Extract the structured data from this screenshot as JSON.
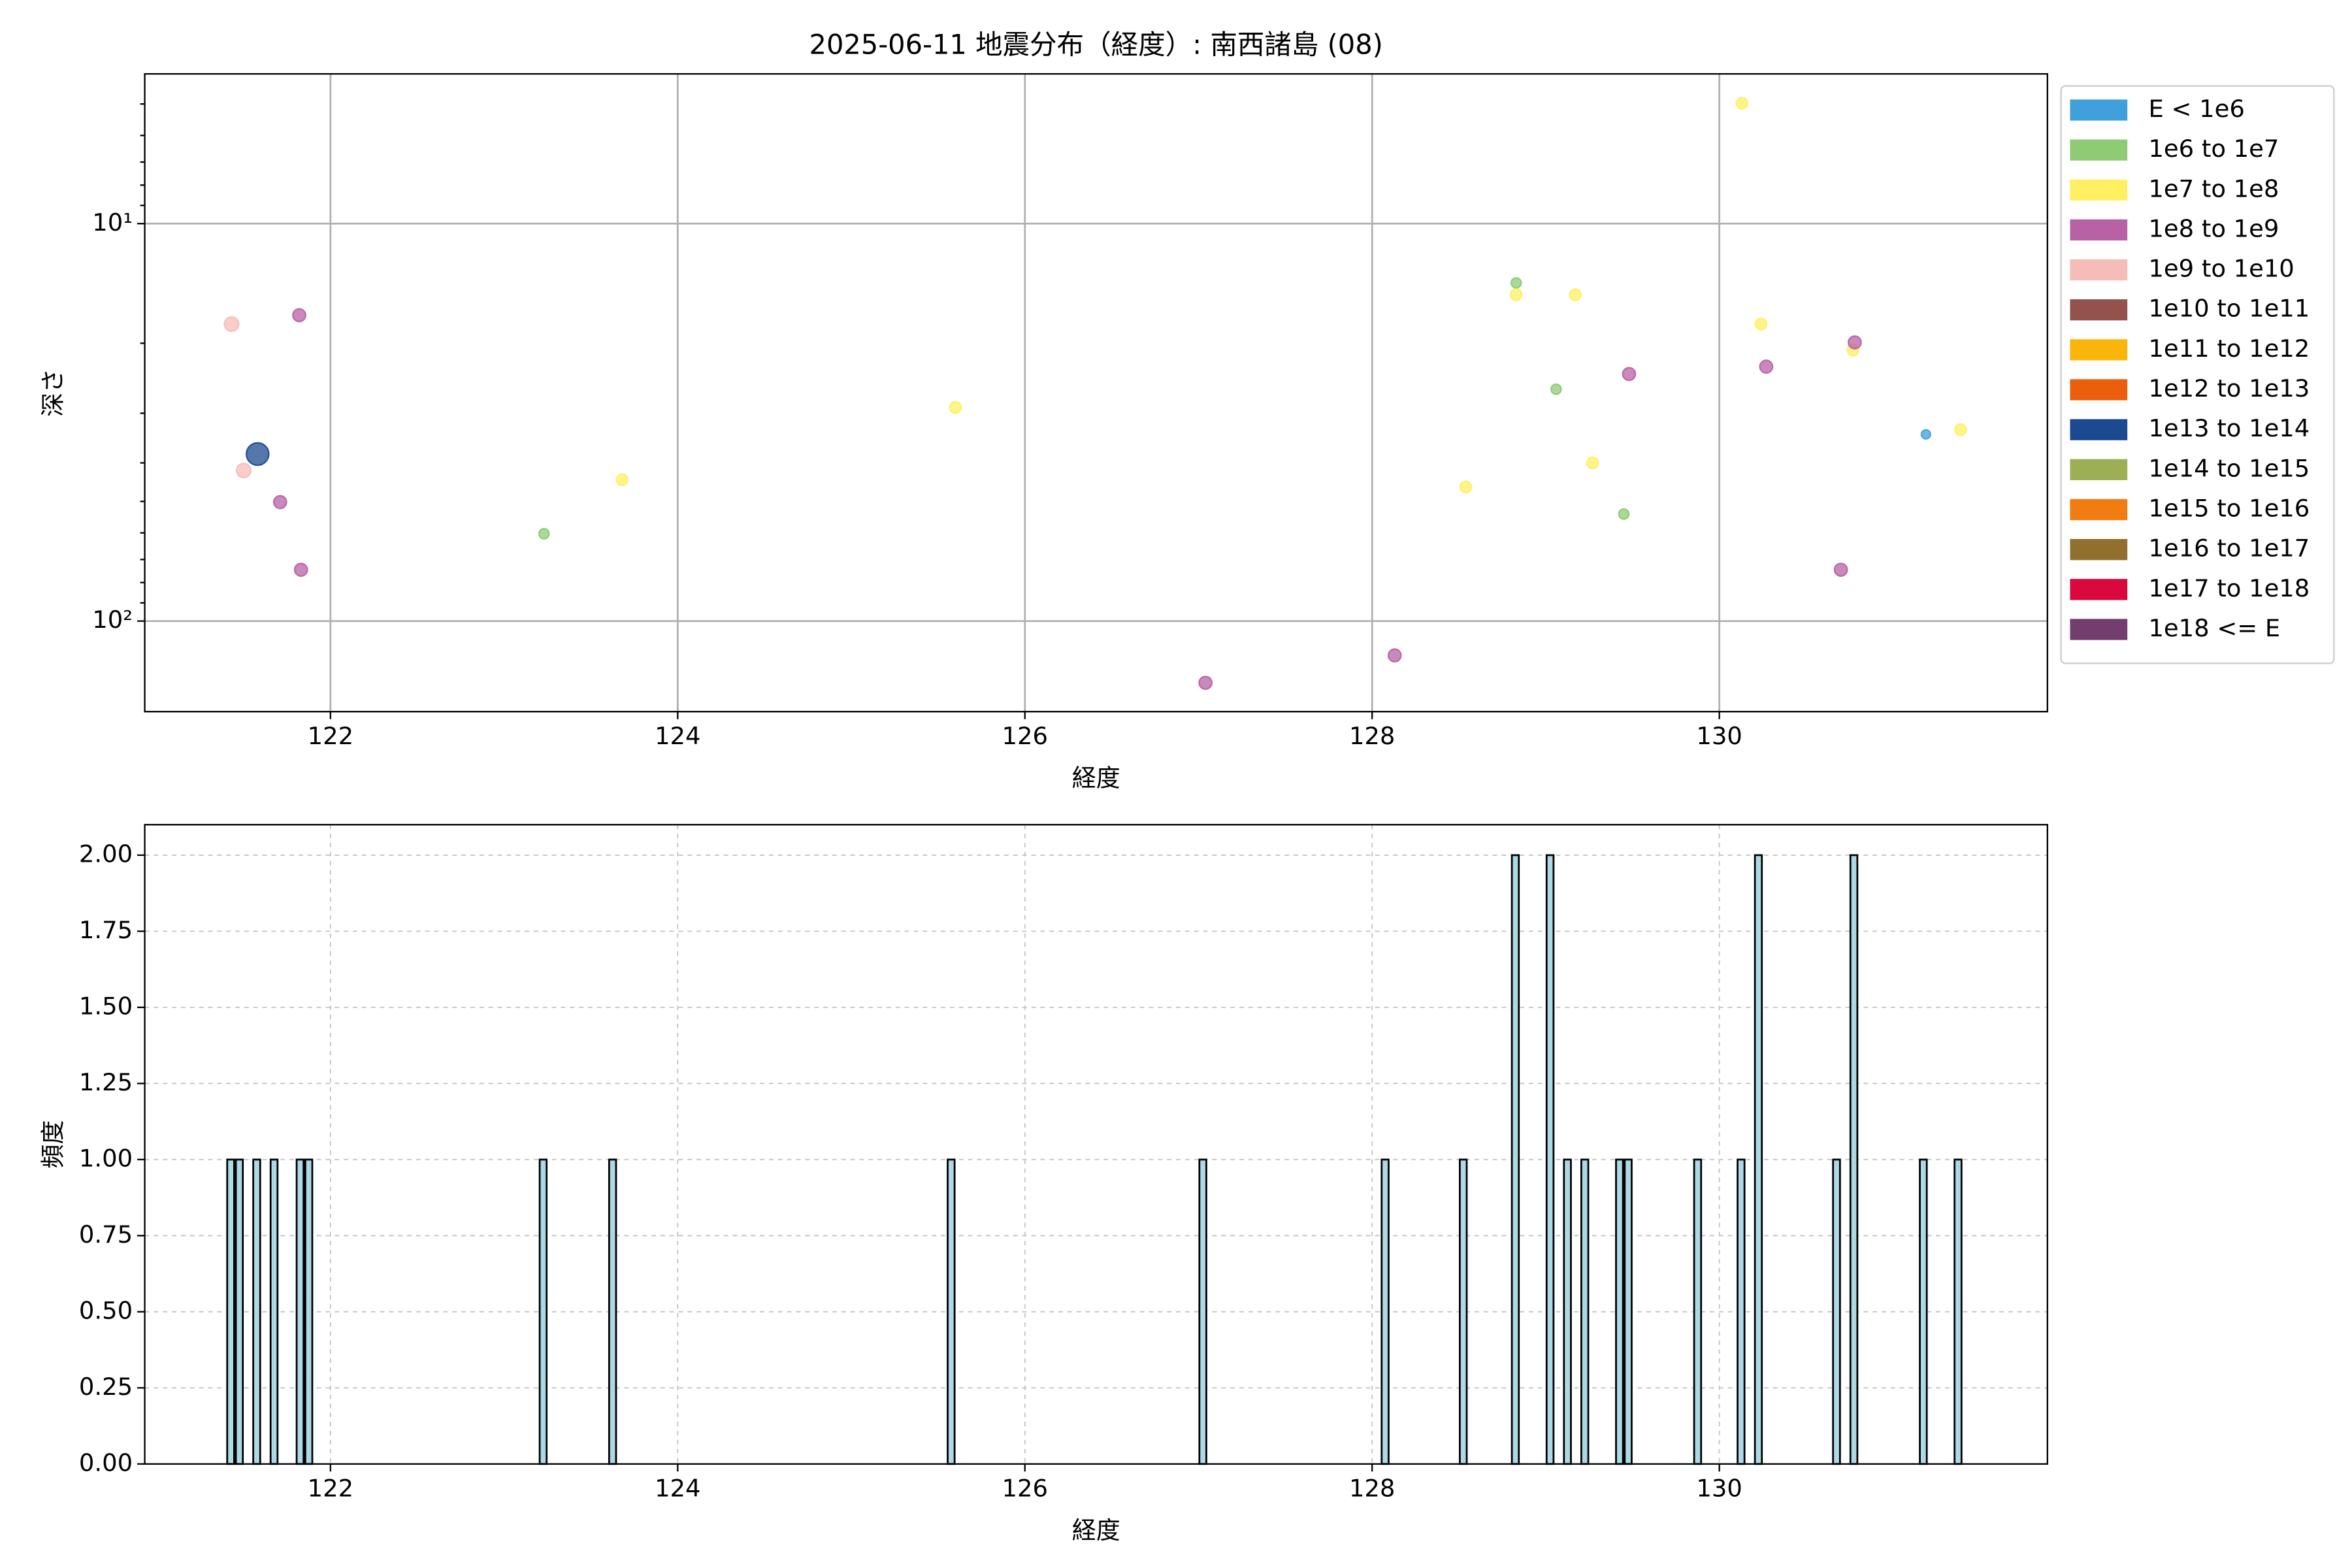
{
  "chart_data": [
    {
      "type": "scatter",
      "title": "2025-06-11 地震分布（経度）: 南西諸島 (08)",
      "x_label": "経度",
      "y_label": "深さ",
      "xlim": [
        120.93,
        131.89
      ],
      "xticks": [
        122,
        124,
        126,
        128,
        130
      ],
      "ylim": [
        4.2,
        169
      ],
      "y_log": true,
      "y_inverted": true,
      "yticks": [
        {
          "value": 10,
          "label": "10¹"
        },
        {
          "value": 100,
          "label": "10²"
        }
      ],
      "yminorticks": [
        5,
        6,
        7,
        8,
        9,
        20,
        30,
        40,
        50,
        60,
        70,
        80,
        90
      ],
      "grid": true,
      "grid_style": "solid",
      "legend": "outside-right",
      "series": [
        {
          "name": "E < 1e6",
          "color": "#3fa0dc",
          "x": [
            131.19
          ],
          "values": [
            33.9
          ]
        },
        {
          "name": "1e6 to 1e7",
          "color": "#8fcb75",
          "x": [
            123.23,
            128.83,
            129.06,
            129.45
          ],
          "values": [
            60.3,
            14.1,
            26.1,
            53.8
          ]
        },
        {
          "name": "1e7 to 1e8",
          "color": "#fff062",
          "x": [
            123.68,
            125.6,
            128.54,
            128.83,
            129.17,
            129.27,
            130.13,
            130.24,
            130.77,
            131.39
          ],
          "values": [
            44.1,
            29.0,
            46.0,
            15.1,
            15.1,
            40.0,
            4.98,
            17.9,
            20.8,
            33.0
          ]
        },
        {
          "name": "1e8 to 1e9",
          "color": "#b862a5",
          "x": [
            121.82,
            121.71,
            121.83,
            127.04,
            128.13,
            129.48,
            130.27,
            130.78,
            130.7
          ],
          "values": [
            17.0,
            50.2,
            74.3,
            143,
            122,
            23.9,
            22.9,
            19.9,
            74.3
          ]
        },
        {
          "name": "1e9 to 1e10",
          "color": "#f6bcb8",
          "x": [
            121.43,
            121.5
          ],
          "values": [
            17.9,
            41.8
          ]
        },
        {
          "name": "1e10 to 1e11",
          "color": "#93524b",
          "x": [],
          "values": []
        },
        {
          "name": "1e11 to 1e12",
          "color": "#f9b50a",
          "x": [],
          "values": []
        },
        {
          "name": "1e12 to 1e13",
          "color": "#ea5e0c",
          "x": [],
          "values": []
        },
        {
          "name": "1e13 to 1e14",
          "color": "#1c4a90",
          "x": [
            121.58
          ],
          "values": [
            38.0
          ]
        },
        {
          "name": "1e14 to 1e15",
          "color": "#9caf55",
          "x": [],
          "values": []
        },
        {
          "name": "1e15 to 1e16",
          "color": "#f07c12",
          "x": [],
          "values": []
        },
        {
          "name": "1e16 to 1e17",
          "color": "#916f2d",
          "x": [],
          "values": []
        },
        {
          "name": "1e17 to 1e18",
          "color": "#d9083d",
          "x": [],
          "values": []
        },
        {
          "name": "1e18 <= E",
          "color": "#733d6e",
          "x": [],
          "values": []
        }
      ]
    },
    {
      "type": "histogram",
      "x_label": "経度",
      "y_label": "頻度",
      "xlim": [
        120.93,
        131.89
      ],
      "xticks": [
        122,
        124,
        126,
        128,
        130
      ],
      "ylim": [
        0,
        2.1
      ],
      "yticks": [
        {
          "value": 0,
          "label": "0.00"
        },
        {
          "value": 0.25,
          "label": "0.25"
        },
        {
          "value": 0.5,
          "label": "0.50"
        },
        {
          "value": 0.75,
          "label": "0.75"
        },
        {
          "value": 1,
          "label": "1.00"
        },
        {
          "value": 1.25,
          "label": "1.25"
        },
        {
          "value": 1.5,
          "label": "1.50"
        },
        {
          "value": 1.75,
          "label": "1.75"
        },
        {
          "value": 2,
          "label": "2.00"
        }
      ],
      "grid": true,
      "grid_style": "dashed",
      "color": "#add8e6",
      "edgecolor": "#000000",
      "bins": [
        121.4,
        121.45,
        121.5,
        121.55,
        121.6,
        121.65,
        121.7,
        121.75,
        121.8,
        121.85,
        121.9,
        121.95,
        122,
        122.05,
        122.1,
        122.15,
        122.2,
        122.25,
        122.3,
        122.35,
        122.4,
        122.45,
        122.5,
        122.55,
        122.6,
        122.65,
        122.7,
        122.75,
        122.8,
        122.85,
        122.9,
        122.95,
        123,
        123.05,
        123.1,
        123.15,
        123.2,
        123.25,
        123.3,
        123.35,
        123.4,
        123.45,
        123.5,
        123.55,
        123.6,
        123.65,
        123.7,
        123.75,
        123.8,
        123.85,
        123.9,
        123.95,
        124,
        124.05,
        124.1,
        124.15,
        124.2,
        124.25,
        124.3,
        124.35,
        124.4,
        124.45,
        124.5,
        124.55,
        124.6,
        124.65,
        124.7,
        124.75,
        124.8,
        124.85,
        124.9,
        124.95,
        125,
        125.05,
        125.1,
        125.15,
        125.2,
        125.25,
        125.3,
        125.35,
        125.4,
        125.45,
        125.5,
        125.55,
        125.6,
        125.65,
        125.7,
        125.75,
        125.8,
        125.85,
        125.9,
        125.95,
        126,
        126.05,
        126.1,
        126.15,
        126.2,
        126.25,
        126.3,
        126.35,
        126.4,
        126.45,
        126.5,
        126.55,
        126.6,
        126.65,
        126.7,
        126.75,
        126.8,
        126.85,
        126.9,
        126.95,
        127,
        127.05,
        127.1,
        127.15,
        127.2,
        127.25,
        127.3,
        127.35,
        127.4,
        127.45,
        127.5,
        127.55,
        127.6,
        127.65,
        127.7,
        127.75,
        127.8,
        127.85,
        127.9,
        127.95,
        128,
        128.05,
        128.1,
        128.15,
        128.2,
        128.25,
        128.3,
        128.35,
        128.4,
        128.45,
        128.5,
        128.55,
        128.6,
        128.65,
        128.7,
        128.75,
        128.8,
        128.85,
        128.9,
        128.95,
        129,
        129.05,
        129.1,
        129.15,
        129.2,
        129.25,
        129.3,
        129.35,
        129.4,
        129.45,
        129.5,
        129.55,
        129.6,
        129.65,
        129.7,
        129.75,
        129.8,
        129.85,
        129.9,
        129.95,
        130,
        130.05,
        130.1,
        130.15,
        130.2,
        130.25,
        130.3,
        130.35,
        130.4,
        130.45,
        130.5,
        130.55,
        130.6,
        130.65,
        130.7,
        130.75,
        130.8,
        130.85,
        130.9,
        130.95,
        131,
        131.05,
        131.1,
        131.15,
        131.2,
        131.25,
        131.3,
        131.35,
        131.4,
        131.45
      ],
      "counts": [
        1,
        1,
        0,
        1,
        0,
        1,
        0,
        0,
        1,
        1,
        0,
        0,
        0,
        0,
        0,
        0,
        0,
        0,
        0,
        0,
        0,
        0,
        0,
        0,
        0,
        0,
        0,
        0,
        0,
        0,
        0,
        0,
        0,
        0,
        0,
        0,
        1,
        0,
        0,
        0,
        0,
        0,
        0,
        0,
        1,
        0,
        0,
        0,
        0,
        0,
        0,
        0,
        0,
        0,
        0,
        0,
        0,
        0,
        0,
        0,
        0,
        0,
        0,
        0,
        0,
        0,
        0,
        0,
        0,
        0,
        0,
        0,
        0,
        0,
        0,
        0,
        0,
        0,
        0,
        0,
        0,
        0,
        0,
        1,
        0,
        0,
        0,
        0,
        0,
        0,
        0,
        0,
        0,
        0,
        0,
        0,
        0,
        0,
        0,
        0,
        0,
        0,
        0,
        0,
        0,
        0,
        0,
        0,
        0,
        0,
        0,
        0,
        1,
        0,
        0,
        0,
        0,
        0,
        0,
        0,
        0,
        0,
        0,
        0,
        0,
        0,
        0,
        0,
        0,
        0,
        0,
        0,
        0,
        1,
        0,
        0,
        0,
        0,
        0,
        0,
        0,
        0,
        1,
        0,
        0,
        0,
        0,
        0,
        2,
        0,
        0,
        0,
        2,
        0,
        1,
        0,
        1,
        0,
        0,
        0,
        1,
        1,
        0,
        0,
        0,
        0,
        0,
        0,
        0,
        1,
        0,
        0,
        0,
        0,
        1,
        0,
        2,
        0,
        0,
        0,
        0,
        0,
        0,
        0,
        0,
        1,
        0,
        2,
        0,
        0,
        0,
        0,
        0,
        0,
        0,
        1,
        0,
        0,
        0,
        1,
        0
      ]
    }
  ]
}
